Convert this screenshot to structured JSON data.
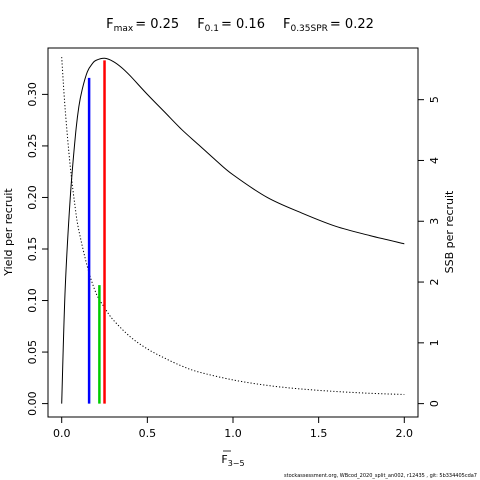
{
  "title": {
    "fmax": {
      "label": "F",
      "sub": "max",
      "value": "= 0.25"
    },
    "f01": {
      "label": "F",
      "sub": "0.1",
      "value": "= 0.16"
    },
    "f035": {
      "label": "F",
      "sub": "0.35SPR",
      "value": "= 0.22"
    }
  },
  "footer": "stockassessment.org,  WBcod_2020_split_an002, r12435 ,  git: 5b334405cda7",
  "chart_data": {
    "type": "line",
    "xlabel": {
      "label": "F",
      "sub": "3−5"
    },
    "ylabel_left": "Yield per recruit",
    "ylabel_right": "SSB per recruit",
    "xlim": [
      -0.08,
      2.08
    ],
    "ylim_left": [
      -0.013,
      0.345
    ],
    "ylim_right": [
      -0.22,
      5.85
    ],
    "x_ticks": [
      0,
      0.5,
      1,
      1.5,
      2
    ],
    "x_tick_labels": [
      "0.0",
      "0.5",
      "1.0",
      "1.5",
      "2.0"
    ],
    "y_left_ticks": [
      0,
      0.05,
      0.1,
      0.15,
      0.2,
      0.25,
      0.3
    ],
    "y_left_tick_labels": [
      "0.00",
      "0.05",
      "0.10",
      "0.15",
      "0.20",
      "0.25",
      "0.30"
    ],
    "y_right_ticks": [
      0,
      1,
      2,
      3,
      4,
      5
    ],
    "y_right_tick_labels": [
      "0",
      "1",
      "2",
      "3",
      "4",
      "5"
    ],
    "grid": false,
    "series": [
      {
        "axis": "left",
        "style": "solid",
        "color": "#000000",
        "x": [
          0,
          0.02,
          0.05,
          0.08,
          0.1,
          0.12,
          0.15,
          0.18,
          0.2,
          0.25,
          0.3,
          0.35,
          0.4,
          0.5,
          0.6,
          0.7,
          0.8,
          0.9,
          1.0,
          1.2,
          1.4,
          1.6,
          1.8,
          2.0
        ],
        "y": [
          0,
          0.11,
          0.2,
          0.26,
          0.288,
          0.305,
          0.322,
          0.33,
          0.333,
          0.335,
          0.332,
          0.326,
          0.318,
          0.3,
          0.283,
          0.266,
          0.251,
          0.236,
          0.222,
          0.2,
          0.185,
          0.172,
          0.163,
          0.155
        ]
      },
      {
        "axis": "right",
        "style": "dotted",
        "color": "#000000",
        "x": [
          0,
          0.02,
          0.05,
          0.08,
          0.1,
          0.15,
          0.2,
          0.25,
          0.3,
          0.4,
          0.5,
          0.6,
          0.7,
          0.8,
          1.0,
          1.2,
          1.4,
          1.6,
          1.8,
          2.0
        ],
        "y": [
          5.7,
          4.85,
          3.9,
          3.2,
          2.85,
          2.25,
          1.82,
          1.58,
          1.38,
          1.1,
          0.9,
          0.75,
          0.62,
          0.52,
          0.39,
          0.3,
          0.24,
          0.2,
          0.17,
          0.15
        ]
      }
    ],
    "reference_lines": [
      {
        "name": "Fmax",
        "x": 0.25,
        "y_top": 0.333,
        "axis": "left",
        "color": "#ff0000"
      },
      {
        "name": "F0.1",
        "x": 0.16,
        "y_top": 0.316,
        "axis": "left",
        "color": "#0000ff"
      },
      {
        "name": "F0.35SPR",
        "x": 0.22,
        "y_top": 1.95,
        "axis": "right",
        "color": "#00cc00"
      }
    ]
  }
}
